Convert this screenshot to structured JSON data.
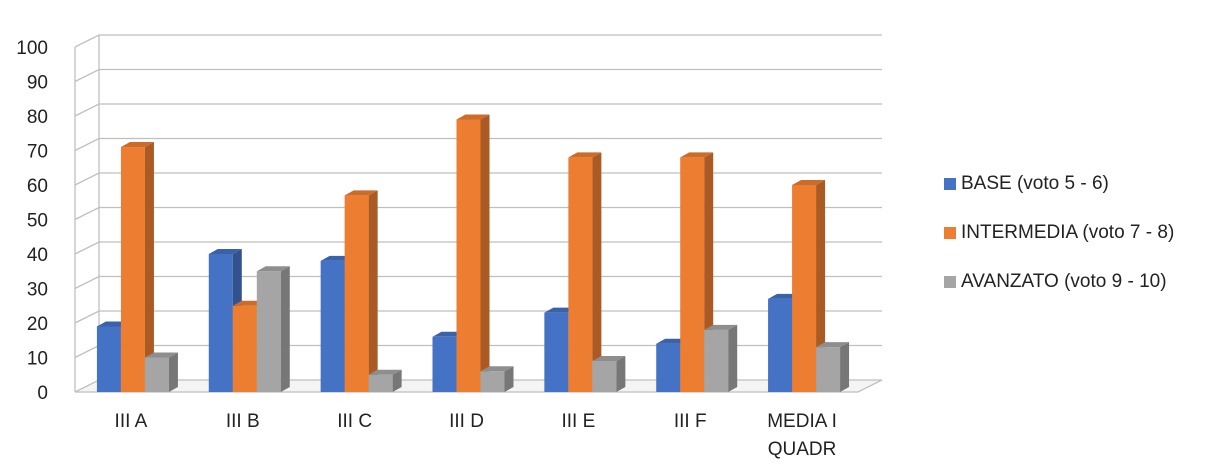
{
  "chart_data": {
    "type": "bar",
    "categories": [
      "III A",
      "III B",
      "III C",
      "III D",
      "III E",
      "III F",
      "MEDIA I QUADR"
    ],
    "series": [
      {
        "name": "BASE (voto 5 - 6)",
        "color": "#4472C4",
        "values": [
          19,
          40,
          38,
          16,
          23,
          14,
          27
        ]
      },
      {
        "name": "INTERMEDIA (voto 7 - 8)",
        "color": "#ED7D31",
        "values": [
          71,
          25,
          57,
          79,
          68,
          68,
          60
        ]
      },
      {
        "name": "AVANZATO (voto 9 - 10)",
        "color": "#A5A5A5",
        "values": [
          10,
          35,
          5,
          6,
          9,
          18,
          13
        ]
      }
    ],
    "title": "",
    "xlabel": "",
    "ylabel": "",
    "ylim": [
      0,
      100
    ],
    "yticks": [
      0,
      10,
      20,
      30,
      40,
      50,
      60,
      70,
      80,
      90,
      100
    ],
    "grid": true,
    "legend_position": "right",
    "style": "3d-clustered-column"
  }
}
